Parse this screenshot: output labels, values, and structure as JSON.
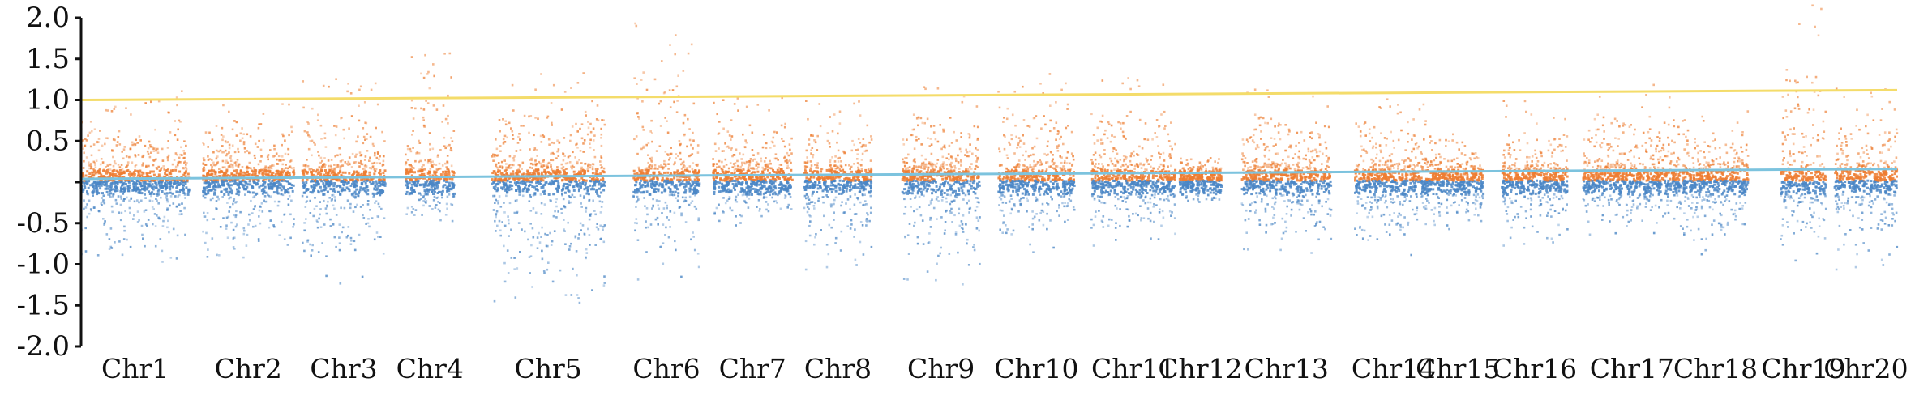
{
  "chart_data": {
    "type": "scatter",
    "title": "",
    "xlabel": "",
    "ylabel": "",
    "ylim": [
      -2.0,
      2.0
    ],
    "yticks": [
      "2.0",
      "1.5",
      "1.0",
      "0.5",
      "",
      "-0.5",
      "-1.0",
      "-1.5",
      "-2.0"
    ],
    "yticks_values": [
      2.0,
      1.5,
      1.0,
      0.5,
      0.0,
      -0.5,
      -1.0,
      -1.5,
      -2.0
    ],
    "grid": false,
    "legend": "none",
    "colors": {
      "positive": "#ed7d31",
      "negative": "#4a86c5",
      "threshold": "#f4dc6a",
      "trend": "#7cc3de"
    },
    "chromosomes": [
      {
        "label": "Chr1",
        "start": 0.0,
        "end": 6.4,
        "max": 1.15,
        "min": -1.0
      },
      {
        "label": "Chr2",
        "start": 7.2,
        "end": 12.6,
        "max": 1.0,
        "min": -1.2
      },
      {
        "label": "Chr3",
        "start": 13.1,
        "end": 18.0,
        "max": 1.4,
        "min": -1.3
      },
      {
        "label": "Chr4",
        "start": 19.2,
        "end": 22.1,
        "max": 1.6,
        "min": -0.6
      },
      {
        "label": "Chr5",
        "start": 24.3,
        "end": 31.0,
        "max": 1.35,
        "min": -1.6
      },
      {
        "label": "Chr6",
        "start": 32.7,
        "end": 36.6,
        "max": 1.95,
        "min": -1.3
      },
      {
        "label": "Chr7",
        "start": 37.4,
        "end": 42.1,
        "max": 1.05,
        "min": -0.6
      },
      {
        "label": "Chr8",
        "start": 42.8,
        "end": 46.8,
        "max": 1.0,
        "min": -1.1
      },
      {
        "label": "Chr9",
        "start": 48.6,
        "end": 53.2,
        "max": 1.2,
        "min": -1.3
      },
      {
        "label": "Chr10",
        "start": 54.3,
        "end": 58.8,
        "max": 1.4,
        "min": -0.9
      },
      {
        "label": "Chr11",
        "start": 59.8,
        "end": 64.8,
        "max": 1.3,
        "min": -0.8
      },
      {
        "label": "Chr12",
        "start": 65.0,
        "end": 67.5,
        "max": 0.3,
        "min": -0.3
      },
      {
        "label": "Chr13",
        "start": 68.7,
        "end": 74.0,
        "max": 1.2,
        "min": -0.9
      },
      {
        "label": "Chr14",
        "start": 75.4,
        "end": 80.0,
        "max": 1.1,
        "min": -1.0
      },
      {
        "label": "Chr15",
        "start": 80.0,
        "end": 83.0,
        "max": 0.6,
        "min": -0.6
      },
      {
        "label": "Chr16",
        "start": 84.1,
        "end": 88.0,
        "max": 1.0,
        "min": -0.8
      },
      {
        "label": "Chr17",
        "start": 88.9,
        "end": 94.7,
        "max": 1.2,
        "min": -0.7
      },
      {
        "label": "Chr18",
        "start": 94.8,
        "end": 98.7,
        "max": 0.9,
        "min": -1.0
      },
      {
        "label": "Chr19",
        "start": 100.6,
        "end": 103.3,
        "max": 2.2,
        "min": -1.0
      },
      {
        "label": "Chr20",
        "start": 103.8,
        "end": 107.5,
        "max": 1.15,
        "min": -1.1
      }
    ],
    "threshold_line": {
      "x": [
        0,
        107.5
      ],
      "y": [
        1.0,
        1.12
      ]
    },
    "trend_line": {
      "x": [
        0,
        107.5
      ],
      "y": [
        0.04,
        0.16
      ]
    },
    "xlim": [
      0,
      107.5
    ]
  }
}
